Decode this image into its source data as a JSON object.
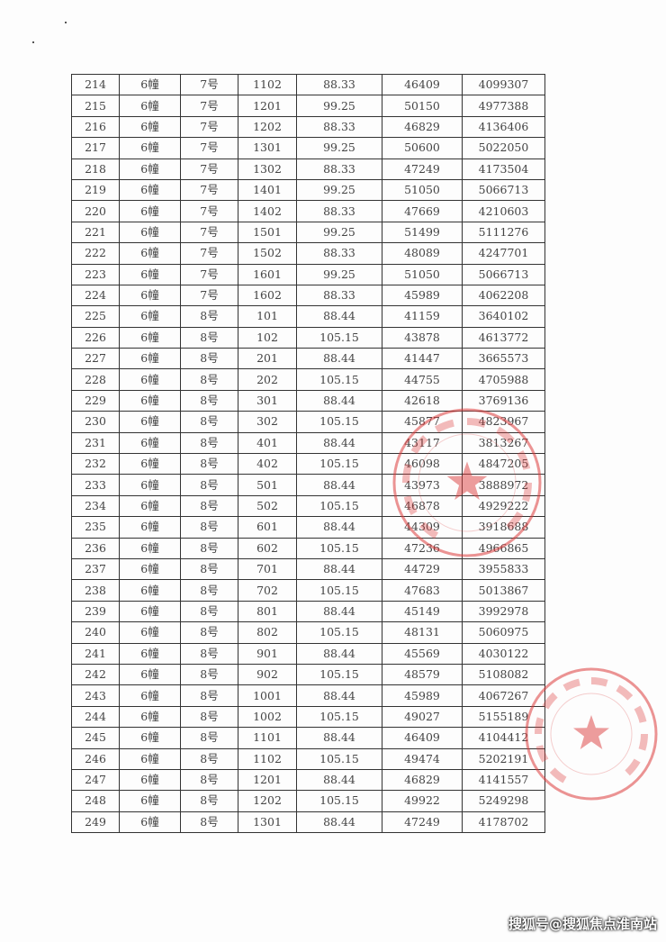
{
  "table": {
    "rows": [
      [
        "214",
        "6幢",
        "7号",
        "1102",
        "88.33",
        "46409",
        "4099307"
      ],
      [
        "215",
        "6幢",
        "7号",
        "1201",
        "99.25",
        "50150",
        "4977388"
      ],
      [
        "216",
        "6幢",
        "7号",
        "1202",
        "88.33",
        "46829",
        "4136406"
      ],
      [
        "217",
        "6幢",
        "7号",
        "1301",
        "99.25",
        "50600",
        "5022050"
      ],
      [
        "218",
        "6幢",
        "7号",
        "1302",
        "88.33",
        "47249",
        "4173504"
      ],
      [
        "219",
        "6幢",
        "7号",
        "1401",
        "99.25",
        "51050",
        "5066713"
      ],
      [
        "220",
        "6幢",
        "7号",
        "1402",
        "88.33",
        "47669",
        "4210603"
      ],
      [
        "221",
        "6幢",
        "7号",
        "1501",
        "99.25",
        "51499",
        "5111276"
      ],
      [
        "222",
        "6幢",
        "7号",
        "1502",
        "88.33",
        "48089",
        "4247701"
      ],
      [
        "223",
        "6幢",
        "7号",
        "1601",
        "99.25",
        "51050",
        "5066713"
      ],
      [
        "224",
        "6幢",
        "7号",
        "1602",
        "88.33",
        "45989",
        "4062208"
      ],
      [
        "225",
        "6幢",
        "8号",
        "101",
        "88.44",
        "41159",
        "3640102"
      ],
      [
        "226",
        "6幢",
        "8号",
        "102",
        "105.15",
        "43878",
        "4613772"
      ],
      [
        "227",
        "6幢",
        "8号",
        "201",
        "88.44",
        "41447",
        "3665573"
      ],
      [
        "228",
        "6幢",
        "8号",
        "202",
        "105.15",
        "44755",
        "4705988"
      ],
      [
        "229",
        "6幢",
        "8号",
        "301",
        "88.44",
        "42618",
        "3769136"
      ],
      [
        "230",
        "6幢",
        "8号",
        "302",
        "105.15",
        "45877",
        "4823967"
      ],
      [
        "231",
        "6幢",
        "8号",
        "401",
        "88.44",
        "43117",
        "3813267"
      ],
      [
        "232",
        "6幢",
        "8号",
        "402",
        "105.15",
        "46098",
        "4847205"
      ],
      [
        "233",
        "6幢",
        "8号",
        "501",
        "88.44",
        "43973",
        "3888972"
      ],
      [
        "234",
        "6幢",
        "8号",
        "502",
        "105.15",
        "46878",
        "4929222"
      ],
      [
        "235",
        "6幢",
        "8号",
        "601",
        "88.44",
        "44309",
        "3918688"
      ],
      [
        "236",
        "6幢",
        "8号",
        "602",
        "105.15",
        "47236",
        "4966865"
      ],
      [
        "237",
        "6幢",
        "8号",
        "701",
        "88.44",
        "44729",
        "3955833"
      ],
      [
        "238",
        "6幢",
        "8号",
        "702",
        "105.15",
        "47683",
        "5013867"
      ],
      [
        "239",
        "6幢",
        "8号",
        "801",
        "88.44",
        "45149",
        "3992978"
      ],
      [
        "240",
        "6幢",
        "8号",
        "802",
        "105.15",
        "48131",
        "5060975"
      ],
      [
        "241",
        "6幢",
        "8号",
        "901",
        "88.44",
        "45569",
        "4030122"
      ],
      [
        "242",
        "6幢",
        "8号",
        "902",
        "105.15",
        "48579",
        "5108082"
      ],
      [
        "243",
        "6幢",
        "8号",
        "1001",
        "88.44",
        "45989",
        "4067267"
      ],
      [
        "244",
        "6幢",
        "8号",
        "1002",
        "105.15",
        "49027",
        "5155189"
      ],
      [
        "245",
        "6幢",
        "8号",
        "1101",
        "88.44",
        "46409",
        "4104412"
      ],
      [
        "246",
        "6幢",
        "8号",
        "1102",
        "105.15",
        "49474",
        "5202191"
      ],
      [
        "247",
        "6幢",
        "8号",
        "1201",
        "88.44",
        "46829",
        "4141557"
      ],
      [
        "248",
        "6幢",
        "8号",
        "1202",
        "105.15",
        "49922",
        "5249298"
      ],
      [
        "249",
        "6幢",
        "8号",
        "1301",
        "88.44",
        "47249",
        "4178702"
      ]
    ]
  },
  "stamps": {
    "stamp1_text": "上海东涌区建设有限公司",
    "stamp2_text": "建设发展有限公司"
  },
  "colors": {
    "stamp": "#dc3c3c"
  },
  "watermark": "搜狐号@搜狐焦点淮南站"
}
